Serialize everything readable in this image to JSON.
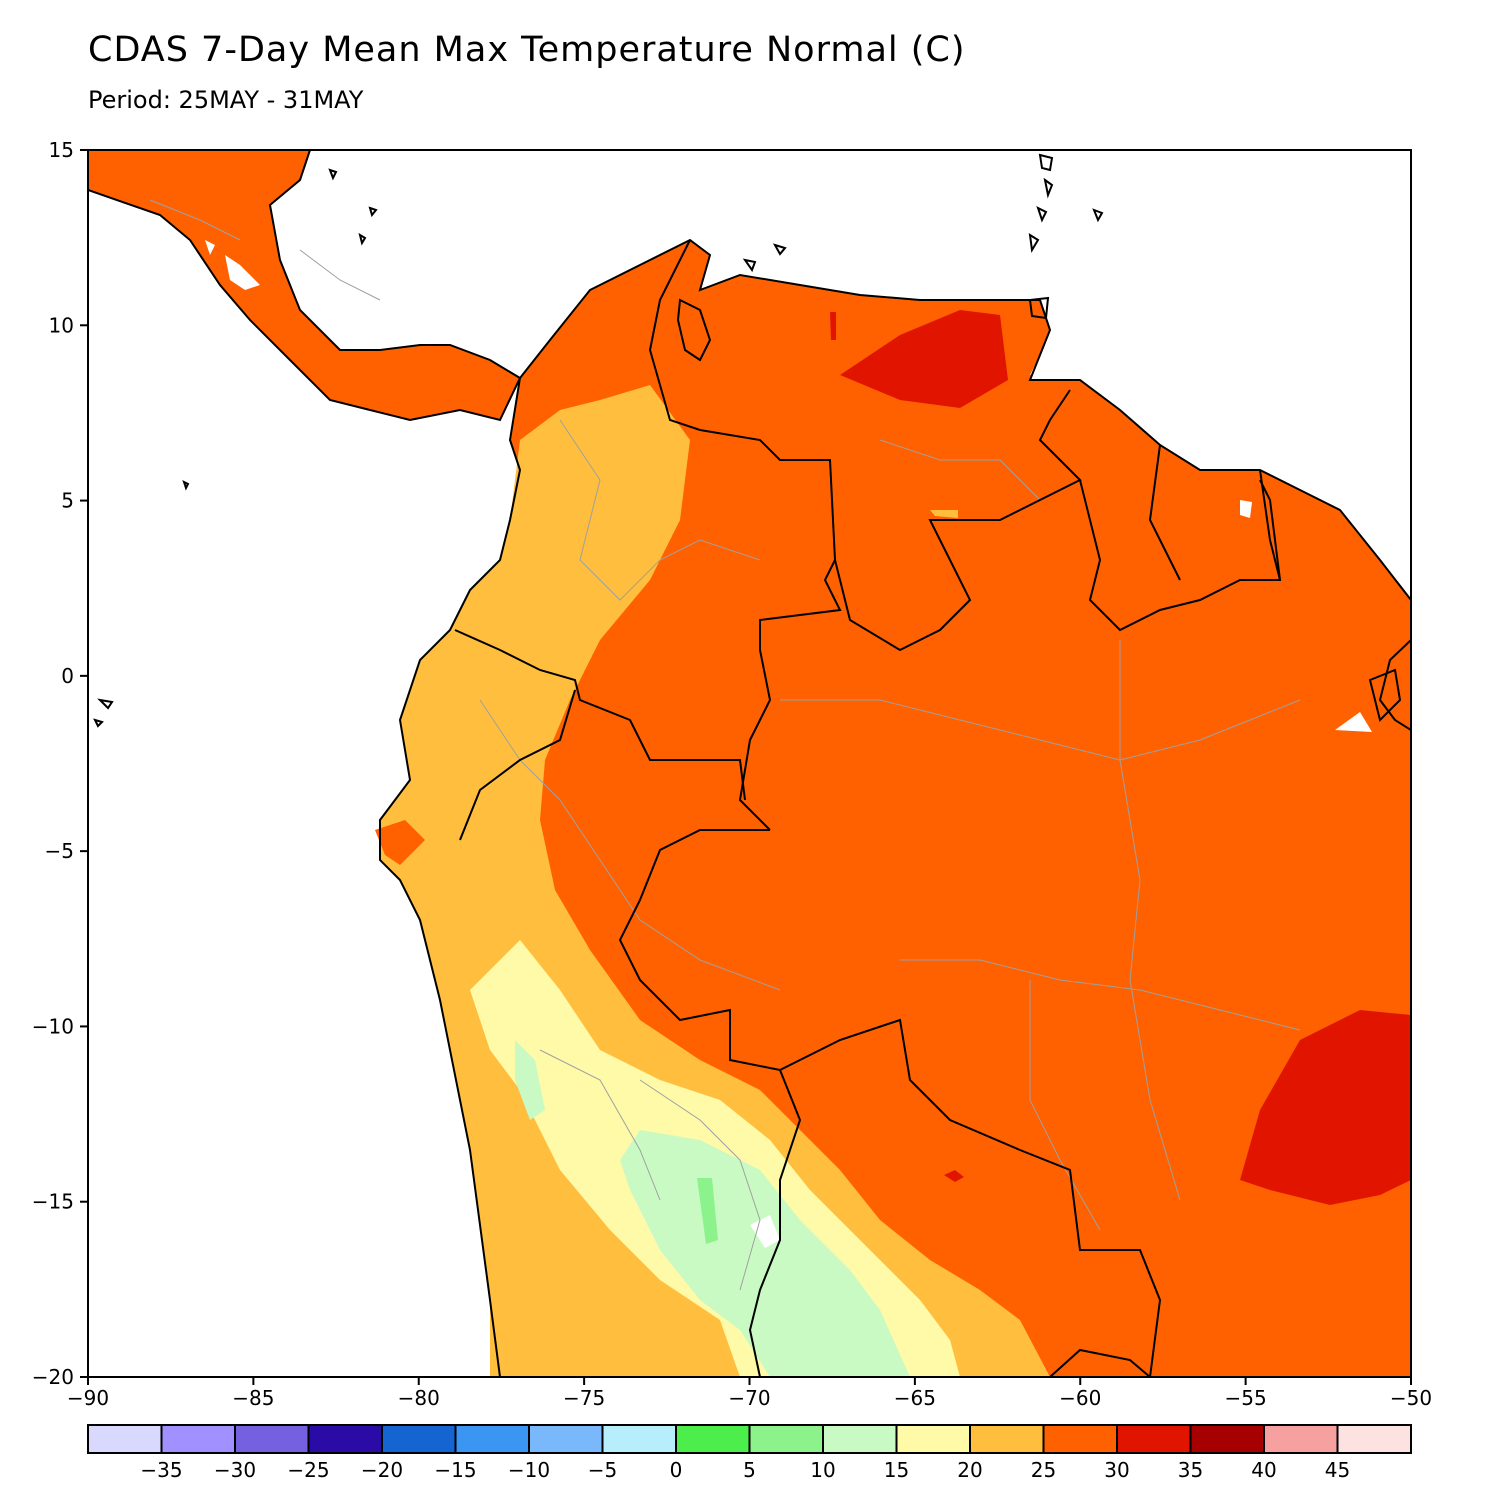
{
  "title": "CDAS 7-Day Mean Max Temperature Normal (C)",
  "subtitle": "Period: 25MAY - 31MAY",
  "map": {
    "lon_range": [
      -90,
      -50
    ],
    "lat_range": [
      -20,
      15
    ],
    "lon_ticks": [
      {
        "value": -90,
        "label": "−90"
      },
      {
        "value": -85,
        "label": "−85"
      },
      {
        "value": -80,
        "label": "−80"
      },
      {
        "value": -75,
        "label": "−75"
      },
      {
        "value": -70,
        "label": "−70"
      },
      {
        "value": -65,
        "label": "−65"
      },
      {
        "value": -60,
        "label": "−60"
      },
      {
        "value": -55,
        "label": "−55"
      },
      {
        "value": -50,
        "label": "−50"
      }
    ],
    "lat_ticks": [
      {
        "value": 15,
        "label": "15"
      },
      {
        "value": 10,
        "label": "10"
      },
      {
        "value": 5,
        "label": "5"
      },
      {
        "value": 0,
        "label": "0"
      },
      {
        "value": -5,
        "label": "−5"
      },
      {
        "value": -10,
        "label": "−10"
      },
      {
        "value": -15,
        "label": "−15"
      },
      {
        "value": -20,
        "label": "−20"
      }
    ]
  },
  "colorbar": {
    "colors": [
      "#d9d9ff",
      "#a190ff",
      "#7560e0",
      "#2b0ba6",
      "#1465d1",
      "#3a96f2",
      "#78b8fb",
      "#b6eefc",
      "#4bee4b",
      "#8cf28c",
      "#c9fac4",
      "#fefaa8",
      "#ffbe3d",
      "#ff6100",
      "#e11400",
      "#a70000",
      "#f7a0a0",
      "#fde2e2"
    ],
    "labels": [
      "−35",
      "−30",
      "−25",
      "−20",
      "−15",
      "−10",
      "−5",
      "0",
      "5",
      "10",
      "15",
      "20",
      "25",
      "30",
      "35",
      "40",
      "45"
    ]
  }
}
